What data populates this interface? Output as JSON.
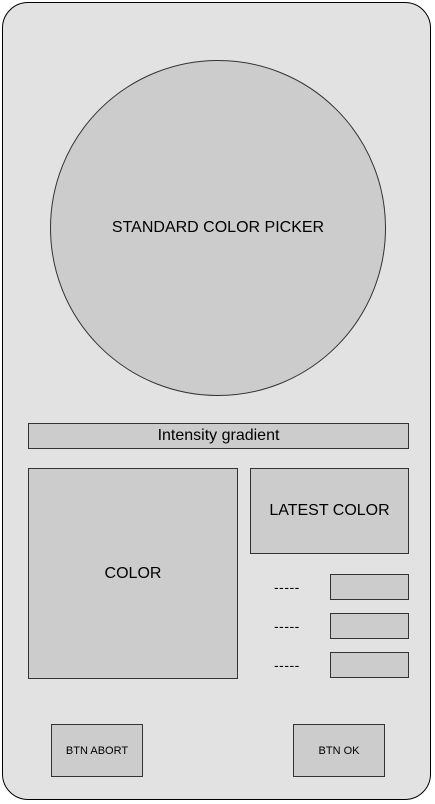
{
  "picker": {
    "label": "STANDARD COLOR PICKER"
  },
  "intensity": {
    "label": "Intensity gradient"
  },
  "color_preview": {
    "label": "COLOR"
  },
  "latest_color": {
    "label": "LATEST COLOR"
  },
  "history": [
    {
      "label": "-----"
    },
    {
      "label": "-----"
    },
    {
      "label": "-----"
    }
  ],
  "buttons": {
    "abort": "BTN ABORT",
    "ok": "BTN OK"
  }
}
